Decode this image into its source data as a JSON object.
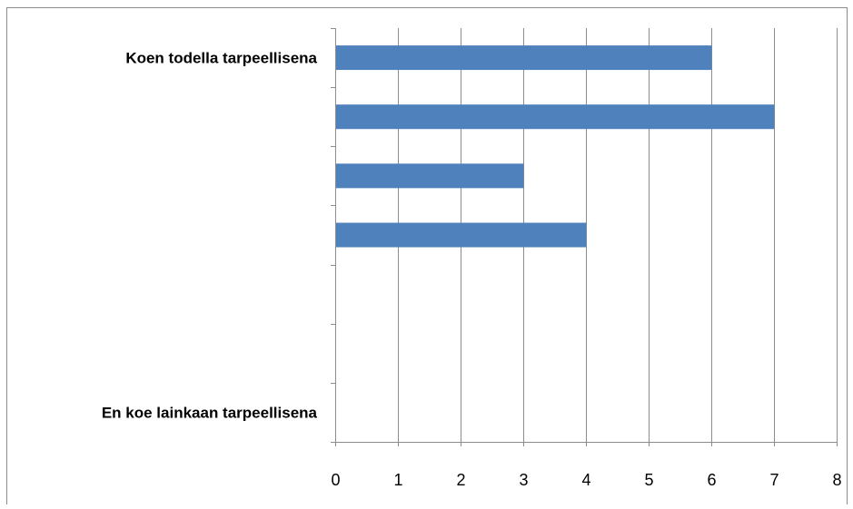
{
  "chart_data": {
    "type": "bar",
    "orientation": "horizontal",
    "categories": [
      "Koen todella tarpeellisena",
      "",
      "",
      "",
      "",
      "",
      "En koe lainkaan tarpeellisena"
    ],
    "values": [
      6,
      7,
      3,
      4,
      0,
      0,
      0
    ],
    "xlim": [
      0,
      8
    ],
    "x_ticks": [
      "0",
      "1",
      "2",
      "3",
      "4",
      "5",
      "6",
      "7",
      "8"
    ],
    "grid": "vertical",
    "bar_color": "#4f81bd",
    "legend": "none"
  }
}
